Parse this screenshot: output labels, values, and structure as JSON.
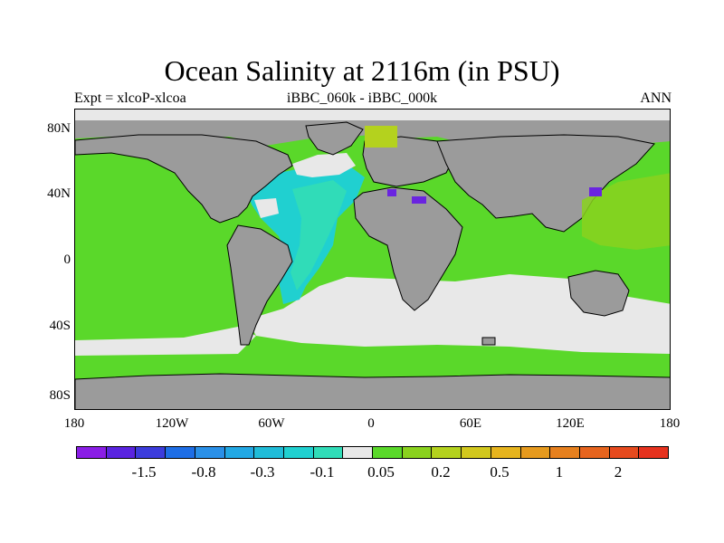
{
  "title": "Ocean Salinity at 2116m (in PSU)",
  "subtitle_left": "Expt = xlcoP-xlcoa",
  "subtitle_center": "iBBC_060k - iBBC_000k",
  "subtitle_right": "ANN",
  "lat_labels": [
    "80N",
    "40N",
    "0",
    "40S",
    "80S"
  ],
  "lon_labels": [
    "180",
    "120W",
    "60W",
    "0",
    "60E",
    "120E",
    "180"
  ],
  "colorbar": {
    "colors": [
      "#8a1ee6",
      "#5a24e0",
      "#3c3cdc",
      "#1e6ee6",
      "#2a90e8",
      "#22a8e4",
      "#20bcd8",
      "#20d0d0",
      "#30dcb8",
      "#e8e8e8",
      "#5ad82a",
      "#8ad21e",
      "#b4d21e",
      "#d2c81e",
      "#e6b41e",
      "#e69a1e",
      "#e6801e",
      "#e6641e",
      "#e64a1e",
      "#e6321e"
    ],
    "labels": [
      "-1.5",
      "-0.8",
      "-0.3",
      "-0.1",
      "0.05",
      "0.2",
      "0.5",
      "1",
      "2"
    ]
  },
  "map_colors": {
    "land": "#9b9b9b",
    "near_zero": "#e8e8e8",
    "slight_positive": "#5ad82a",
    "positive": "#8ad21e",
    "cyan": "#20d0d0",
    "teal": "#30dcb8",
    "purple": "#6a24e0"
  }
}
